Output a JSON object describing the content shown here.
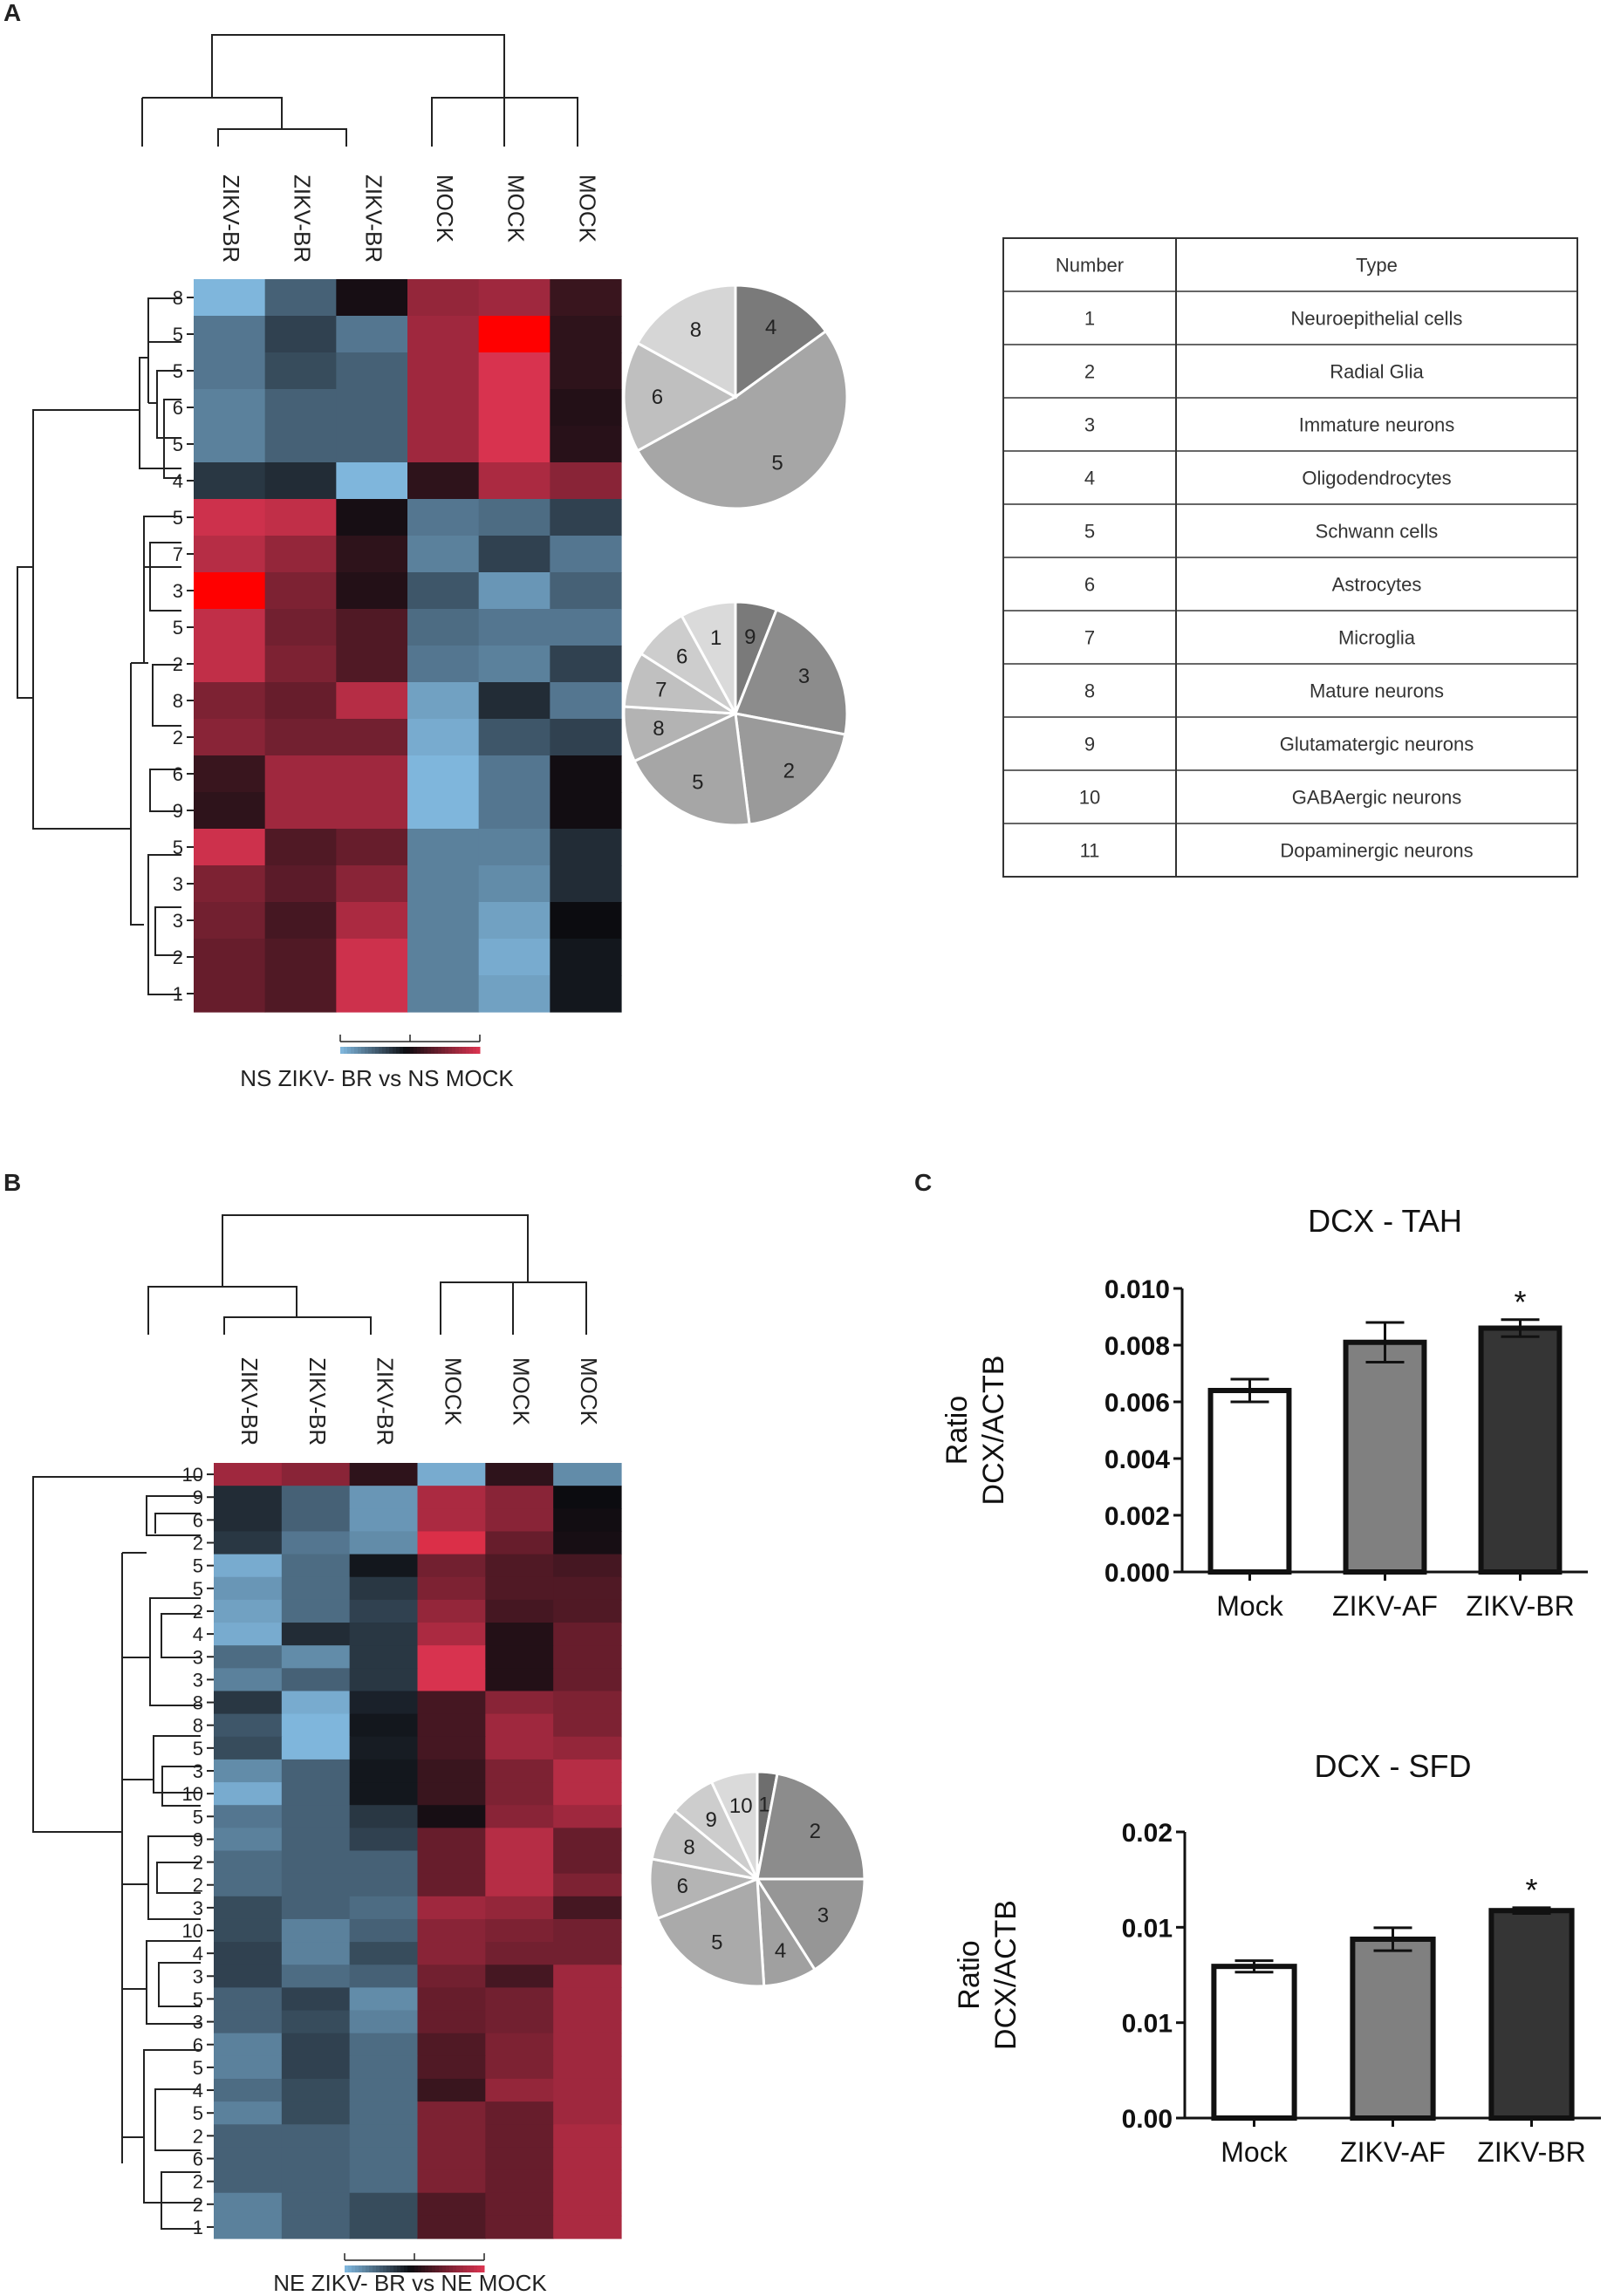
{
  "panels": {
    "a": "A",
    "b": "B",
    "c": "C"
  },
  "palette": {
    "blue": "#7fb6dc",
    "black": "#0c0c10",
    "red": "#d8334f",
    "bright_red": "#ff0000",
    "pie_dark": "#777777",
    "pie_light": "#d8d8d8"
  },
  "heatmap_a": {
    "columns": [
      "ZIKV-BR",
      "ZIKV-BR",
      "ZIKV-BR",
      "MOCK",
      "MOCK",
      "MOCK"
    ],
    "rows": [
      "8",
      "5",
      "5",
      "6",
      "5",
      "4",
      "5",
      "7",
      "3",
      "5",
      "2",
      "8",
      "2",
      "6",
      "9",
      "5",
      "3",
      "3",
      "2",
      "1"
    ],
    "values": [
      [
        -1.6,
        -0.8,
        0.1,
        1.2,
        1.3,
        0.4
      ],
      [
        -1.0,
        -0.5,
        -1.0,
        1.3,
        3.0,
        0.3
      ],
      [
        -1.0,
        -0.6,
        -0.8,
        1.3,
        1.8,
        0.3
      ],
      [
        -1.1,
        -0.8,
        -0.8,
        1.3,
        1.8,
        0.2
      ],
      [
        -1.1,
        -0.8,
        -0.8,
        1.3,
        1.8,
        0.25
      ],
      [
        -0.4,
        -0.3,
        -1.6,
        0.3,
        1.4,
        1.1
      ],
      [
        1.7,
        1.6,
        0.1,
        -1.0,
        -0.9,
        -0.5
      ],
      [
        1.5,
        1.2,
        0.3,
        -1.1,
        -0.5,
        -1.0
      ],
      [
        3.0,
        1.0,
        0.2,
        -0.7,
        -1.3,
        -0.8
      ],
      [
        1.6,
        0.9,
        0.6,
        -0.9,
        -1.0,
        -1.0
      ],
      [
        1.6,
        1.0,
        0.6,
        -1.0,
        -1.1,
        -0.5
      ],
      [
        1.0,
        0.8,
        1.5,
        -1.4,
        -0.3,
        -1.0
      ],
      [
        1.1,
        0.9,
        0.9,
        -1.5,
        -0.7,
        -0.5
      ],
      [
        0.4,
        1.3,
        1.3,
        -1.6,
        -1.0,
        0.05
      ],
      [
        0.3,
        1.3,
        1.3,
        -1.6,
        -1.0,
        0.05
      ],
      [
        1.7,
        0.6,
        0.8,
        -1.1,
        -1.1,
        -0.3
      ],
      [
        1.0,
        0.7,
        1.1,
        -1.1,
        -1.2,
        -0.3
      ],
      [
        0.9,
        0.5,
        1.4,
        -1.1,
        -1.4,
        0.0
      ],
      [
        0.8,
        0.6,
        1.7,
        -1.1,
        -1.5,
        -0.1
      ],
      [
        0.8,
        0.6,
        1.7,
        -1.1,
        -1.4,
        -0.1
      ]
    ],
    "caption": "NS ZIKV- BR vs NS MOCK"
  },
  "pies_a": [
    {
      "slices": [
        {
          "label": "4",
          "value": 15,
          "color": "#7a7a7a"
        },
        {
          "label": "5",
          "value": 52,
          "color": "#a6a6a6"
        },
        {
          "label": "6",
          "value": 16,
          "color": "#bfbfbf"
        },
        {
          "label": "8",
          "value": 17,
          "color": "#d6d6d6"
        }
      ]
    },
    {
      "slices": [
        {
          "label": "9",
          "value": 6,
          "color": "#7a7a7a"
        },
        {
          "label": "3",
          "value": 22,
          "color": "#8c8c8c"
        },
        {
          "label": "2",
          "value": 20,
          "color": "#9a9a9a"
        },
        {
          "label": "5",
          "value": 20,
          "color": "#a6a6a6"
        },
        {
          "label": "8",
          "value": 8,
          "color": "#b3b3b3"
        },
        {
          "label": "7",
          "value": 8,
          "color": "#c0c0c0"
        },
        {
          "label": "6",
          "value": 8,
          "color": "#cdcdcd"
        },
        {
          "label": "1",
          "value": 8,
          "color": "#dadada"
        }
      ]
    }
  ],
  "type_table": {
    "headers": [
      "Number",
      "Type"
    ],
    "rows": [
      [
        "1",
        "Neuroepithelial cells"
      ],
      [
        "2",
        "Radial Glia"
      ],
      [
        "3",
        "Immature neurons"
      ],
      [
        "4",
        "Oligodendrocytes"
      ],
      [
        "5",
        "Schwann cells"
      ],
      [
        "6",
        "Astrocytes"
      ],
      [
        "7",
        "Microglia"
      ],
      [
        "8",
        "Mature neurons"
      ],
      [
        "9",
        "Glutamatergic neurons"
      ],
      [
        "10",
        "GABAergic neurons"
      ],
      [
        "11",
        "Dopaminergic neurons"
      ]
    ]
  },
  "heatmap_b": {
    "columns": [
      "ZIKV-BR",
      "ZIKV-BR",
      "ZIKV-BR",
      "MOCK",
      "MOCK",
      "MOCK"
    ],
    "rows": [
      "10",
      "9",
      "6",
      "2",
      "5",
      "5",
      "2",
      "4",
      "3",
      "3",
      "8",
      "8",
      "5",
      "3",
      "10",
      "5",
      "9",
      "2",
      "2",
      "3",
      "10",
      "4",
      "3",
      "5",
      "3",
      "6",
      "5",
      "4",
      "5",
      "2",
      "6",
      "2",
      "2",
      "1"
    ],
    "values": [
      [
        1.3,
        1.1,
        0.3,
        -1.5,
        0.3,
        -1.2
      ],
      [
        -0.3,
        -0.8,
        -1.3,
        1.4,
        1.1,
        0.0
      ],
      [
        -0.3,
        -0.8,
        -1.3,
        1.4,
        1.1,
        0.05
      ],
      [
        -0.4,
        -1.0,
        -1.2,
        1.9,
        0.8,
        0.1
      ],
      [
        -1.5,
        -0.9,
        -0.1,
        0.9,
        0.6,
        0.5
      ],
      [
        -1.3,
        -0.9,
        -0.4,
        1.0,
        0.6,
        0.6
      ],
      [
        -1.4,
        -0.9,
        -0.5,
        1.2,
        0.5,
        0.6
      ],
      [
        -1.5,
        -0.3,
        -0.4,
        1.4,
        0.2,
        0.8
      ],
      [
        -0.9,
        -1.2,
        -0.4,
        1.8,
        0.2,
        0.8
      ],
      [
        -1.1,
        -0.8,
        -0.4,
        1.8,
        0.2,
        0.8
      ],
      [
        -0.4,
        -1.5,
        -0.2,
        0.5,
        1.1,
        1.0
      ],
      [
        -0.7,
        -1.6,
        -0.1,
        0.5,
        1.3,
        1.0
      ],
      [
        -0.6,
        -1.6,
        -0.15,
        0.5,
        1.3,
        1.2
      ],
      [
        -1.2,
        -0.8,
        -0.1,
        0.4,
        1.0,
        1.5
      ],
      [
        -1.5,
        -0.8,
        -0.1,
        0.4,
        1.0,
        1.5
      ],
      [
        -1.0,
        -0.8,
        -0.4,
        0.1,
        1.1,
        1.3
      ],
      [
        -1.1,
        -0.8,
        -0.5,
        0.8,
        1.5,
        0.8
      ],
      [
        -0.9,
        -0.8,
        -0.8,
        0.8,
        1.5,
        0.8
      ],
      [
        -0.9,
        -0.8,
        -0.8,
        0.8,
        1.5,
        1.0
      ],
      [
        -0.6,
        -0.8,
        -0.9,
        1.3,
        1.2,
        0.5
      ],
      [
        -0.6,
        -1.1,
        -0.8,
        1.1,
        1.0,
        0.9
      ],
      [
        -0.5,
        -1.1,
        -0.6,
        1.1,
        0.9,
        0.9
      ],
      [
        -0.5,
        -0.9,
        -0.8,
        0.9,
        0.5,
        1.3
      ],
      [
        -0.8,
        -0.5,
        -1.2,
        0.8,
        0.9,
        1.3
      ],
      [
        -0.8,
        -0.6,
        -1.1,
        0.8,
        0.9,
        1.3
      ],
      [
        -1.1,
        -0.5,
        -0.9,
        0.6,
        1.0,
        1.3
      ],
      [
        -1.1,
        -0.5,
        -0.9,
        0.6,
        1.0,
        1.3
      ],
      [
        -0.9,
        -0.6,
        -0.9,
        0.4,
        1.2,
        1.3
      ],
      [
        -1.1,
        -0.6,
        -0.9,
        1.0,
        0.8,
        1.3
      ],
      [
        -0.8,
        -0.8,
        -0.9,
        1.0,
        0.8,
        1.4
      ],
      [
        -0.8,
        -0.8,
        -0.9,
        1.0,
        0.8,
        1.4
      ],
      [
        -0.8,
        -0.8,
        -0.9,
        1.0,
        0.8,
        1.4
      ],
      [
        -1.1,
        -0.8,
        -0.6,
        0.6,
        0.8,
        1.4
      ],
      [
        -1.1,
        -0.8,
        -0.6,
        0.6,
        0.8,
        1.4
      ]
    ],
    "caption": "NE ZIKV- BR vs NE MOCK"
  },
  "pie_b": {
    "slices": [
      {
        "label": "1",
        "value": 3,
        "color": "#6e6e6e"
      },
      {
        "label": "2",
        "value": 22,
        "color": "#8c8c8c"
      },
      {
        "label": "3",
        "value": 16,
        "color": "#969696"
      },
      {
        "label": "4",
        "value": 8,
        "color": "#a0a0a0"
      },
      {
        "label": "5",
        "value": 20,
        "color": "#aaaaaa"
      },
      {
        "label": "6",
        "value": 9,
        "color": "#b4b4b4"
      },
      {
        "label": "8",
        "value": 8,
        "color": "#c2c2c2"
      },
      {
        "label": "9",
        "value": 7,
        "color": "#cdcdcd"
      },
      {
        "label": "10",
        "value": 7,
        "color": "#dadada"
      }
    ]
  },
  "chart_data": [
    {
      "type": "bar",
      "title": "DCX - TAH",
      "categories": [
        "Mock",
        "ZIKV-AF",
        "ZIKV-BR"
      ],
      "values": [
        0.0064,
        0.0081,
        0.0086
      ],
      "errors": [
        0.0004,
        0.0007,
        0.0003
      ],
      "colors": [
        "#ffffff",
        "#808080",
        "#353535"
      ],
      "significance": [
        "",
        "",
        "*"
      ],
      "ylabel": "Ratio DCX/ACTB",
      "ylabel_lines": [
        "Ratio",
        "DCX/ACTB"
      ],
      "ylim": [
        0,
        0.01
      ],
      "yticks": [
        "0.000",
        "0.002",
        "0.004",
        "0.006",
        "0.008",
        "0.010"
      ]
    },
    {
      "type": "bar",
      "title": "DCX - SFD",
      "categories": [
        "Mock",
        "ZIKV-AF",
        "ZIKV-BR"
      ],
      "values": [
        0.0106,
        0.0125,
        0.0145
      ],
      "errors": [
        0.0004,
        0.0008,
        0.0002
      ],
      "colors": [
        "#ffffff",
        "#808080",
        "#353535"
      ],
      "significance": [
        "",
        "",
        "*"
      ],
      "ylabel": "Ratio DCX/ACTB",
      "ylabel_lines": [
        "Ratio",
        "DCX/ACTB"
      ],
      "ylim": [
        0,
        0.02
      ],
      "yticks": [
        "0.00",
        "0.01",
        "0.01",
        "0.02"
      ]
    }
  ]
}
